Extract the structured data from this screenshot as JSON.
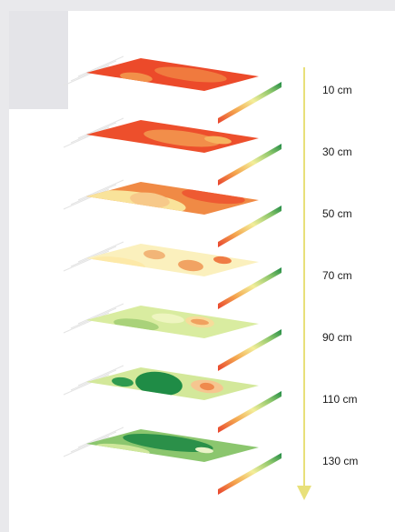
{
  "layers": [
    {
      "label": "10 cm",
      "base": "#ec4a2a",
      "blobs": [
        {
          "c": "#f07a3e",
          "rx": 40,
          "ry": 7,
          "dx": 20,
          "dy": 0
        },
        {
          "c": "#f29049",
          "rx": 18,
          "ry": 5,
          "dx": -40,
          "dy": 3
        }
      ]
    },
    {
      "label": "30 cm",
      "base": "#ed4f2c",
      "blobs": [
        {
          "c": "#f28e4a",
          "rx": 42,
          "ry": 8,
          "dx": 10,
          "dy": 2
        },
        {
          "c": "#f6b35f",
          "rx": 15,
          "ry": 4,
          "dx": 50,
          "dy": 4
        }
      ]
    },
    {
      "label": "50 cm",
      "base": "#f08a45",
      "blobs": [
        {
          "c": "#f9e39a",
          "rx": 55,
          "ry": 11,
          "dx": -40,
          "dy": 4
        },
        {
          "c": "#f7c98a",
          "rx": 22,
          "ry": 8,
          "dx": -25,
          "dy": 2
        },
        {
          "c": "#ee5a32",
          "rx": 35,
          "ry": 7,
          "dx": 45,
          "dy": -2
        }
      ]
    },
    {
      "label": "70 cm",
      "base": "#fbf0bd",
      "blobs": [
        {
          "c": "#f2b577",
          "rx": 12,
          "ry": 5,
          "dx": -20,
          "dy": -6
        },
        {
          "c": "#f1a363",
          "rx": 14,
          "ry": 6,
          "dx": 20,
          "dy": 6
        },
        {
          "c": "#ef7c45",
          "rx": 10,
          "ry": 4,
          "dx": 55,
          "dy": 0
        },
        {
          "c": "#fde9a8",
          "rx": 30,
          "ry": 7,
          "dx": -60,
          "dy": 4
        }
      ]
    },
    {
      "label": "90 cm",
      "base": "#d9eca0",
      "blobs": [
        {
          "c": "#f7dc9a",
          "rx": 16,
          "ry": 6,
          "dx": 30,
          "dy": 0
        },
        {
          "c": "#f0a15f",
          "rx": 10,
          "ry": 3,
          "dx": 30,
          "dy": 0
        },
        {
          "c": "#a9d27a",
          "rx": 25,
          "ry": 6,
          "dx": -40,
          "dy": 3
        },
        {
          "c": "#eef5c0",
          "rx": 18,
          "ry": 5,
          "dx": -5,
          "dy": -4
        }
      ]
    },
    {
      "label": "110 cm",
      "base": "#d3e89a",
      "blobs": [
        {
          "c": "#1f8c46",
          "rx": 26,
          "ry": 13,
          "dx": -15,
          "dy": 0
        },
        {
          "c": "#2f9a4f",
          "rx": 12,
          "ry": 5,
          "dx": -55,
          "dy": -2
        },
        {
          "c": "#f6c690",
          "rx": 18,
          "ry": 7,
          "dx": 38,
          "dy": 3
        },
        {
          "c": "#ef8a4d",
          "rx": 8,
          "ry": 4,
          "dx": 38,
          "dy": 3
        }
      ]
    },
    {
      "label": "130 cm",
      "base": "#8bc66e",
      "blobs": [
        {
          "c": "#2b9049",
          "rx": 50,
          "ry": 8,
          "dx": -5,
          "dy": -3
        },
        {
          "c": "#cfe79b",
          "rx": 30,
          "ry": 5,
          "dx": -55,
          "dy": 4
        },
        {
          "c": "#eaf3c8",
          "rx": 10,
          "ry": 3,
          "dx": 35,
          "dy": 5
        }
      ]
    }
  ],
  "colors": {
    "axis": "#e8e07a",
    "ramp": [
      "#e8402c",
      "#f4a850",
      "#f3ee9a",
      "#8cc66b",
      "#1f8a45"
    ]
  }
}
